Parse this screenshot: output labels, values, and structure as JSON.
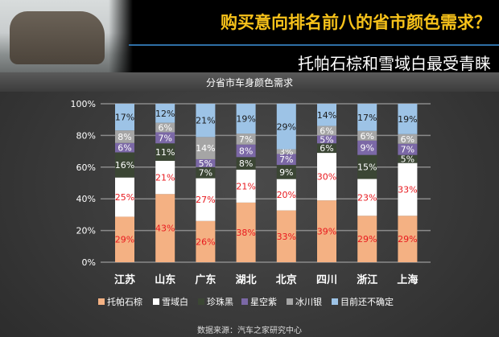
{
  "header": {
    "title": "购买意向排名前八的省市颜色需求？",
    "subtitle": "托帕石棕和雪域白最受青睐"
  },
  "source": "数据来源：汽车之家研究中心",
  "chart_data": {
    "type": "bar",
    "stacked": true,
    "title": "分省市车身颜色需求",
    "categories": [
      "江苏",
      "山东",
      "广东",
      "湖北",
      "北京",
      "四川",
      "浙江",
      "上海"
    ],
    "ylim": [
      0,
      100
    ],
    "yticks": [
      "0%",
      "20%",
      "40%",
      "60%",
      "80%",
      "100%"
    ],
    "grid": true,
    "legend": "bottom",
    "series": [
      {
        "name": "托帕石棕",
        "color": "#F4B183",
        "label_color": "#e8191e",
        "values": [
          29,
          43,
          26,
          38,
          33,
          39,
          29,
          29
        ]
      },
      {
        "name": "雪域白",
        "color": "#FFFFFF",
        "label_color": "#e8191e",
        "values": [
          25,
          21,
          27,
          21,
          20,
          30,
          23,
          33
        ]
      },
      {
        "name": "珍珠黑",
        "color": "#3B4634",
        "label_color": "#FFFFFF",
        "values": [
          16,
          11,
          7,
          8,
          9,
          6,
          15,
          5
        ]
      },
      {
        "name": "星空紫",
        "color": "#7B68A6",
        "label_color": "#FFFFFF",
        "values": [
          6,
          7,
          5,
          8,
          7,
          5,
          9,
          7
        ]
      },
      {
        "name": "冰川银",
        "color": "#A5A5A5",
        "label_color": "#FFFFFF",
        "values": [
          8,
          6,
          14,
          7,
          3,
          6,
          6,
          6
        ]
      },
      {
        "name": "目前还不确定",
        "color": "#9DC3E6",
        "label_color": "#1a1a1a",
        "values": [
          17,
          12,
          21,
          19,
          29,
          14,
          17,
          19
        ]
      }
    ]
  }
}
